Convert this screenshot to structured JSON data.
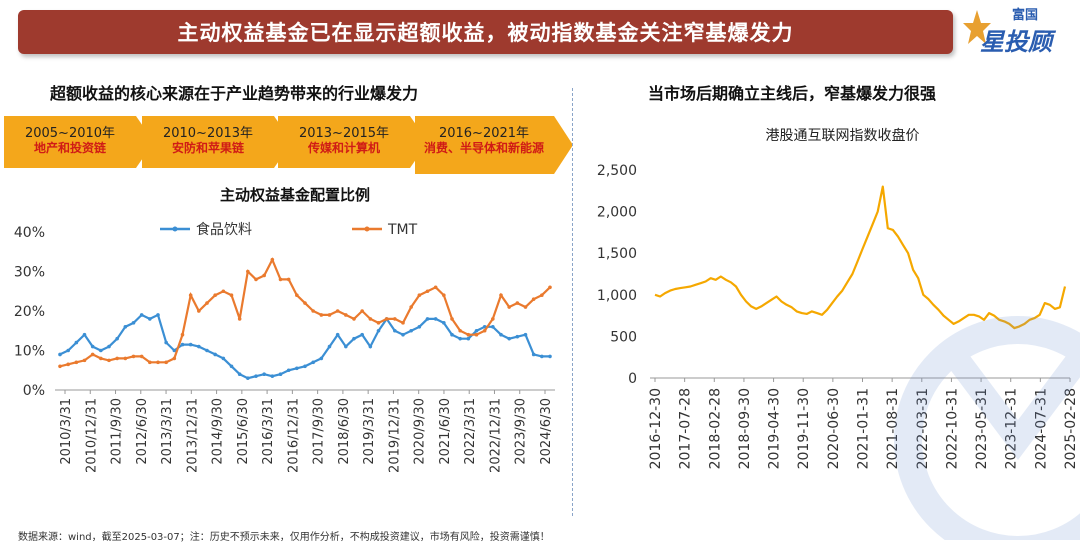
{
  "banner": {
    "title": "主动权益基金已在显示超额收益，被动指数基金关注窄基爆发力"
  },
  "logo": {
    "top": "富国",
    "name": "星投顾"
  },
  "left": {
    "title": "超额收益的核心来源在于产业趋势带来的行业爆发力",
    "phases": [
      {
        "period": "2005~2010年",
        "industry": "地产和投资链"
      },
      {
        "period": "2010~2013年",
        "industry": "安防和苹果链"
      },
      {
        "period": "2013~2015年",
        "industry": "传媒和计算机"
      },
      {
        "period": "2016~2021年",
        "industry": "消费、半导体和新能源"
      }
    ]
  },
  "right": {
    "title": "当市场后期确立主线后，窄基爆发力很强"
  },
  "footer": {
    "text": "数据来源：wind，截至2025-03-07；注：历史不预示未来，仅用作分析，不构成投资建议，市场有风险，投资需谨慎！"
  },
  "colors": {
    "banner": "#9e3a2e",
    "arrow": "#f4a71b",
    "food": "#3b8fd4",
    "tmt": "#ea7a2e",
    "hk": "#f5a800"
  },
  "chart_data": [
    {
      "type": "line",
      "title": "主动权益基金配置比例",
      "x_ticks": [
        "2010/3/31",
        "2010/12/31",
        "2011/9/30",
        "2012/6/30",
        "2013/3/31",
        "2013/12/31",
        "2014/9/30",
        "2015/6/30",
        "2016/3/31",
        "2016/12/31",
        "2017/9/30",
        "2018/6/30",
        "2019/3/31",
        "2019/12/31",
        "2020/9/30",
        "2021/6/30",
        "2022/3/31",
        "2022/12/31",
        "2023/9/30",
        "2024/6/30"
      ],
      "y_ticks": [
        "0%",
        "10%",
        "20%",
        "30%",
        "40%"
      ],
      "ylim": [
        0,
        40
      ],
      "legend_position": "top",
      "series": [
        {
          "name": "食品饮料",
          "values": [
            9,
            10,
            12,
            14,
            11,
            10,
            11,
            13,
            16,
            17,
            19,
            18,
            19,
            12,
            10,
            11.5,
            11.5,
            11,
            10,
            9,
            8,
            6,
            4,
            3,
            3.5,
            4,
            3.5,
            4,
            5,
            5.5,
            6,
            7,
            8,
            11,
            14,
            11,
            13,
            14,
            11,
            15,
            18,
            15,
            14,
            15,
            16,
            18,
            18,
            17,
            14,
            13,
            13,
            15,
            16,
            16,
            14,
            13,
            13.5,
            14,
            9,
            8.5,
            8.5
          ]
        },
        {
          "name": "TMT",
          "values": [
            6,
            6.5,
            7,
            7.5,
            9,
            8,
            7.5,
            8,
            8,
            8.5,
            8.5,
            7,
            7,
            7,
            8,
            14,
            24,
            20,
            22,
            24,
            25,
            24,
            18,
            30,
            28,
            29,
            33,
            28,
            28,
            24,
            22,
            20,
            19,
            19,
            20,
            19,
            18,
            20,
            18,
            17,
            18,
            18,
            17,
            21,
            24,
            25,
            26,
            24,
            18,
            15,
            14,
            14,
            15,
            18,
            24,
            21,
            22,
            21,
            23,
            24,
            26
          ]
        }
      ]
    },
    {
      "type": "line",
      "title": "港股通互联网指数收盘价",
      "x_ticks": [
        "2016-12-30",
        "2017-07-28",
        "2018-02-28",
        "2018-09-30",
        "2019-04-30",
        "2019-11-30",
        "2020-06-30",
        "2021-01-31",
        "2021-08-31",
        "2022-03-31",
        "2022-10-31",
        "2023-05-31",
        "2023-12-31",
        "2024-07-31",
        "2025-02-28"
      ],
      "y_ticks": [
        "0",
        "500",
        "1,000",
        "1,500",
        "2,000",
        "2,500"
      ],
      "ylim": [
        0,
        2500
      ],
      "series": [
        {
          "name": "港股通互联网指数收盘价",
          "values": [
            1000,
            980,
            1020,
            1050,
            1070,
            1080,
            1090,
            1100,
            1120,
            1140,
            1160,
            1200,
            1180,
            1220,
            1180,
            1150,
            1100,
            1000,
            920,
            860,
            830,
            860,
            900,
            940,
            980,
            920,
            880,
            850,
            800,
            780,
            770,
            800,
            780,
            760,
            820,
            900,
            980,
            1050,
            1150,
            1250,
            1400,
            1550,
            1700,
            1850,
            2000,
            2300,
            1800,
            1780,
            1700,
            1600,
            1500,
            1300,
            1200,
            1000,
            950,
            880,
            820,
            750,
            700,
            650,
            680,
            720,
            760,
            760,
            740,
            700,
            780,
            750,
            700,
            680,
            650,
            600,
            620,
            650,
            700,
            720,
            760,
            900,
            880,
            830,
            850,
            1100
          ]
        }
      ]
    }
  ]
}
